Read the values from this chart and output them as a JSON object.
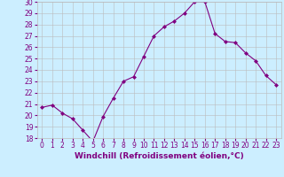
{
  "x": [
    0,
    1,
    2,
    3,
    4,
    5,
    6,
    7,
    8,
    9,
    10,
    11,
    12,
    13,
    14,
    15,
    16,
    17,
    18,
    19,
    20,
    21,
    22,
    23
  ],
  "y": [
    20.7,
    20.9,
    20.2,
    19.7,
    18.7,
    17.7,
    19.9,
    21.5,
    23.0,
    23.4,
    25.2,
    27.0,
    27.8,
    28.3,
    29.0,
    30.0,
    30.0,
    27.2,
    26.5,
    26.4,
    25.5,
    24.8,
    23.5,
    22.7
  ],
  "line_color": "#800080",
  "marker": "D",
  "marker_size": 2,
  "bg_color": "#cceeff",
  "grid_color": "#bbbbbb",
  "xlabel": "Windchill (Refroidissement éolien,°C)",
  "ylim": [
    18,
    30
  ],
  "xlim": [
    -0.5,
    23.5
  ],
  "yticks": [
    18,
    19,
    20,
    21,
    22,
    23,
    24,
    25,
    26,
    27,
    28,
    29,
    30
  ],
  "xticks": [
    0,
    1,
    2,
    3,
    4,
    5,
    6,
    7,
    8,
    9,
    10,
    11,
    12,
    13,
    14,
    15,
    16,
    17,
    18,
    19,
    20,
    21,
    22,
    23
  ],
  "tick_fontsize": 5.5,
  "xlabel_fontsize": 6.5
}
